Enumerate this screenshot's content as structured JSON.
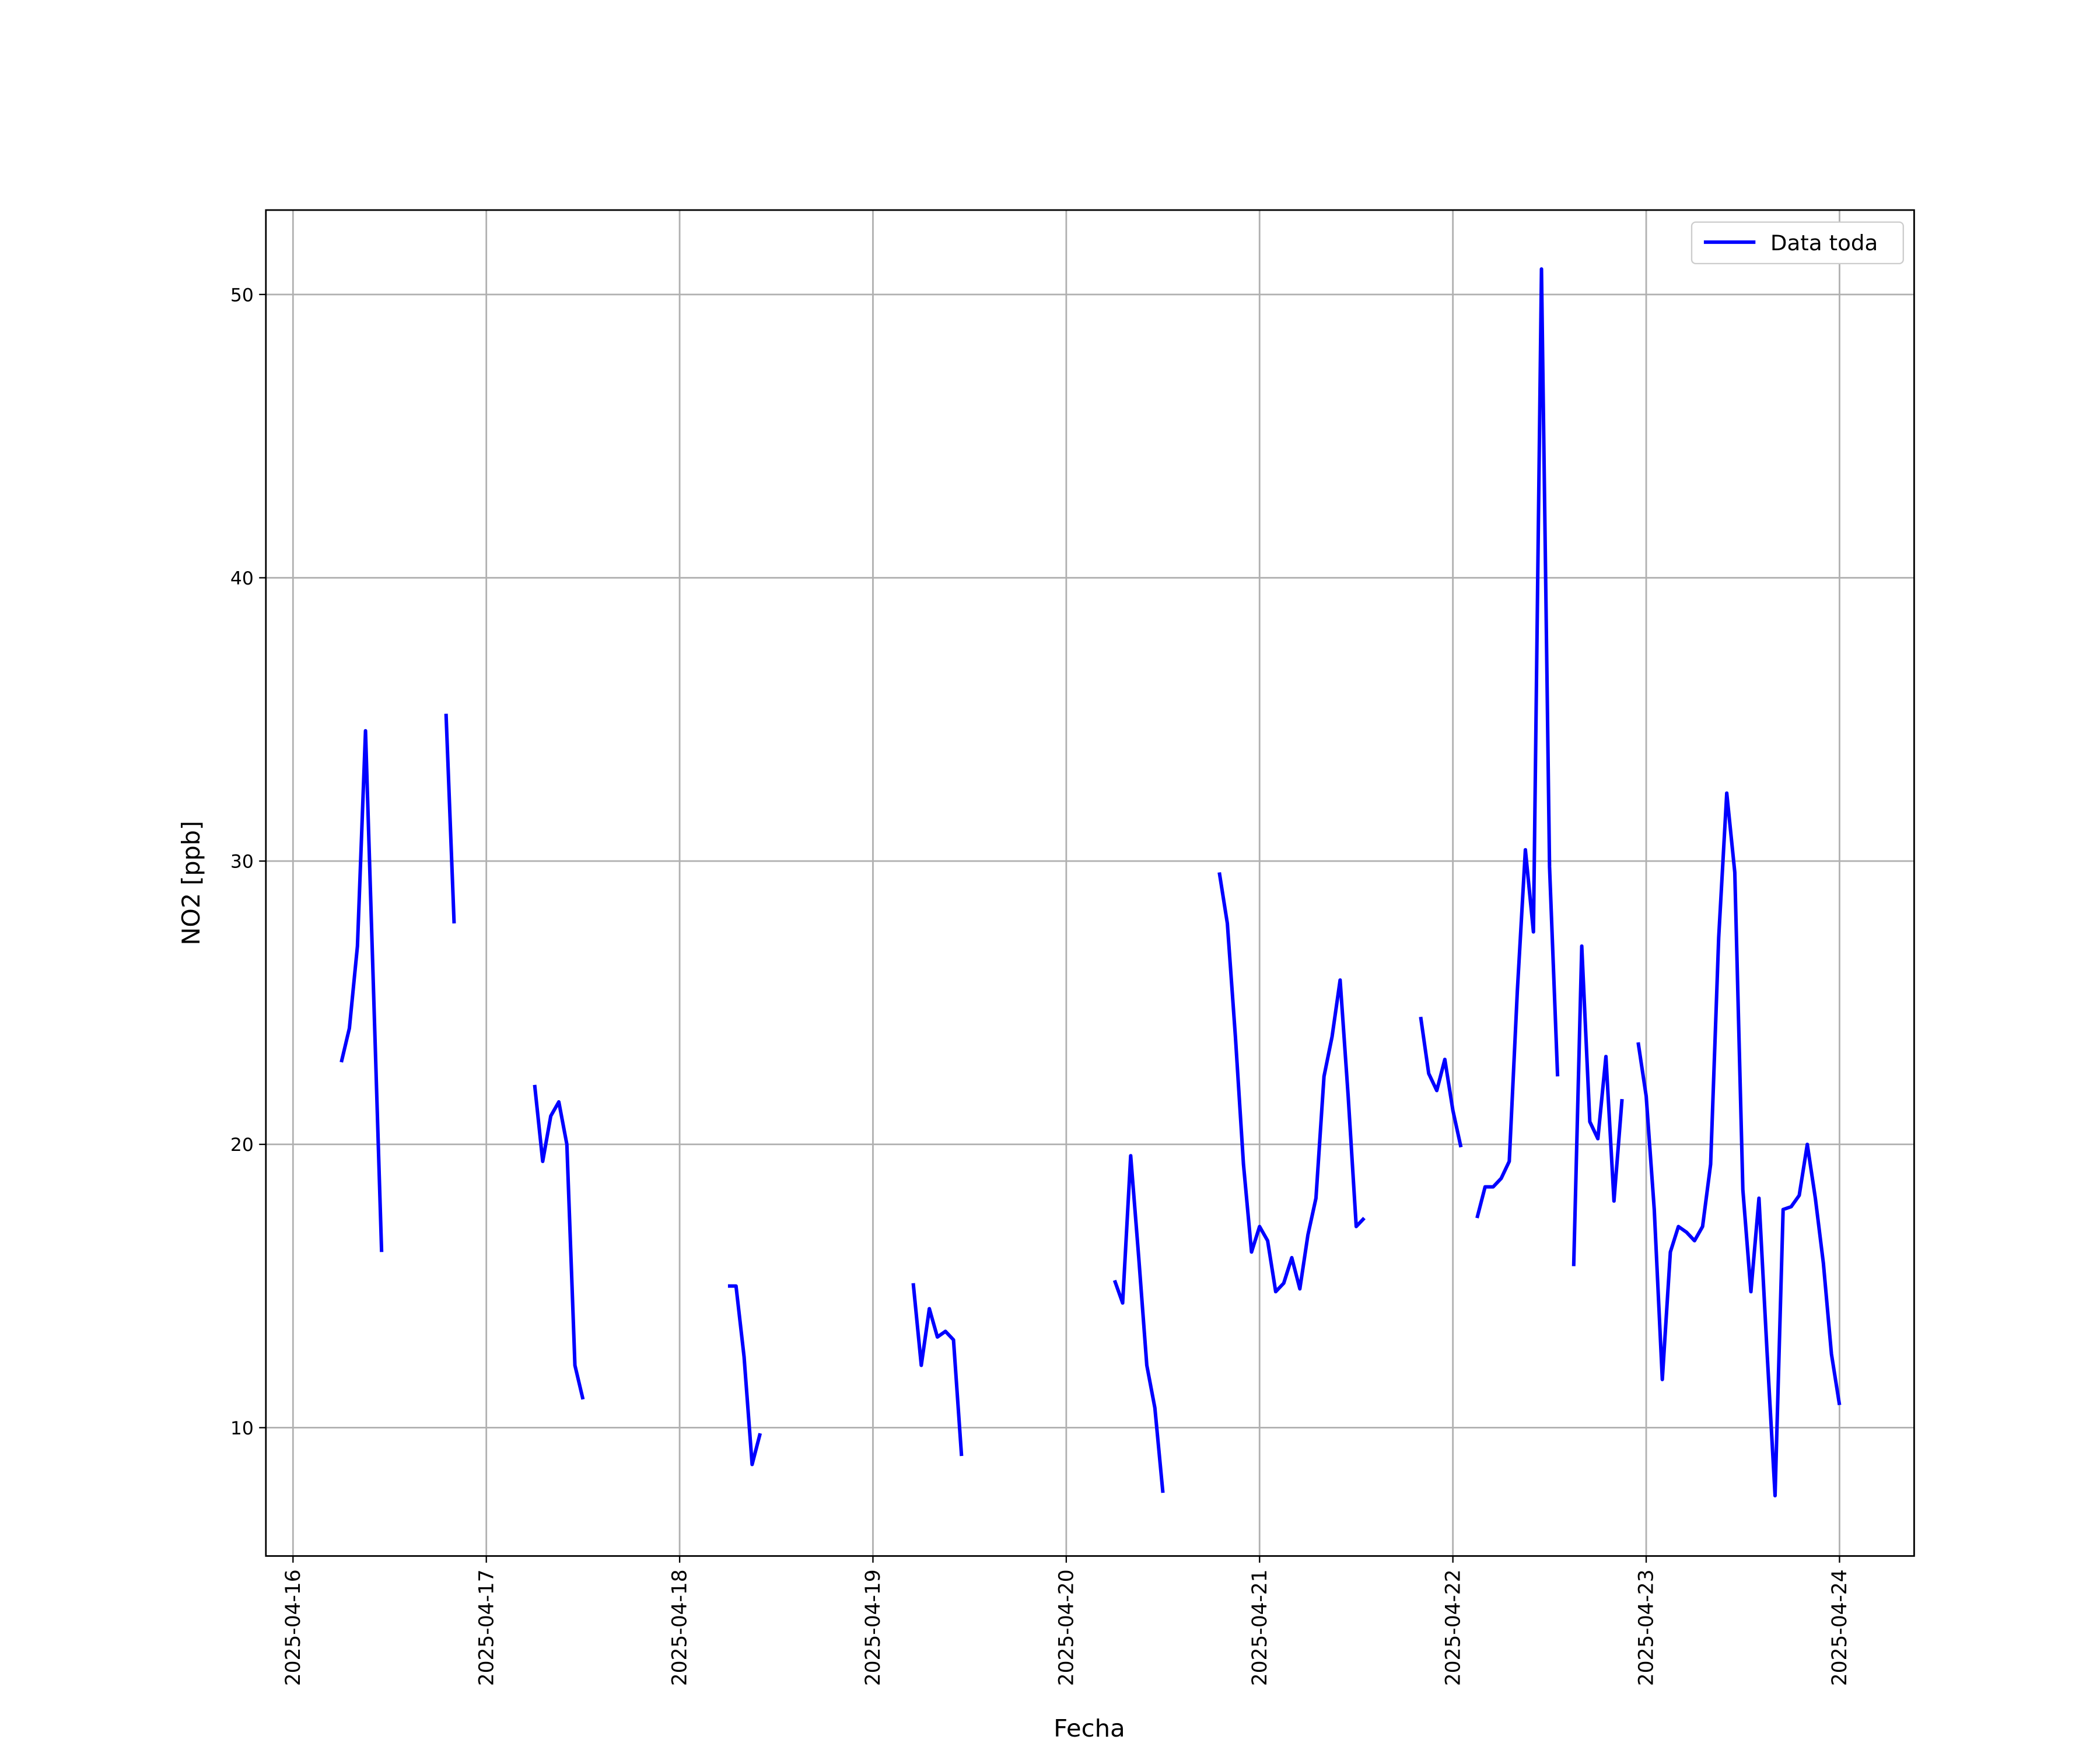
{
  "chart_data": {
    "type": "line",
    "xlabel": "Fecha",
    "ylabel": "NO2 [ppb]",
    "x": [
      "2025-04-16 06:00",
      "2025-04-16 07:00",
      "2025-04-16 08:00",
      "2025-04-16 09:00",
      "2025-04-16 10:00",
      "2025-04-16 11:00",
      "2025-04-16 12:00",
      "2025-04-16 19:00",
      "2025-04-16 20:00",
      "2025-04-16 21:00",
      "2025-04-17 06:00",
      "2025-04-17 07:00",
      "2025-04-17 08:00",
      "2025-04-17 09:00",
      "2025-04-17 10:00",
      "2025-04-17 11:00",
      "2025-04-17 12:00",
      "2025-04-17 13:00",
      "2025-04-18 06:00",
      "2025-04-18 07:00",
      "2025-04-18 08:00",
      "2025-04-18 09:00",
      "2025-04-18 10:00",
      "2025-04-18 11:00",
      "2025-04-19 05:00",
      "2025-04-19 06:00",
      "2025-04-19 07:00",
      "2025-04-19 08:00",
      "2025-04-19 09:00",
      "2025-04-19 10:00",
      "2025-04-19 11:00",
      "2025-04-19 12:00",
      "2025-04-20 06:00",
      "2025-04-20 07:00",
      "2025-04-20 08:00",
      "2025-04-20 09:00",
      "2025-04-20 10:00",
      "2025-04-20 11:00",
      "2025-04-20 12:00",
      "2025-04-20 13:00",
      "2025-04-20 19:00",
      "2025-04-20 20:00",
      "2025-04-20 21:00",
      "2025-04-20 22:00",
      "2025-04-20 23:00",
      "2025-04-21 00:00",
      "2025-04-21 01:00",
      "2025-04-21 02:00",
      "2025-04-21 03:00",
      "2025-04-21 04:00",
      "2025-04-21 05:00",
      "2025-04-21 06:00",
      "2025-04-21 07:00",
      "2025-04-21 08:00",
      "2025-04-21 09:00",
      "2025-04-21 10:00",
      "2025-04-21 11:00",
      "2025-04-21 12:00",
      "2025-04-21 13:00",
      "2025-04-21 14:00",
      "2025-04-21 20:00",
      "2025-04-21 21:00",
      "2025-04-21 22:00",
      "2025-04-21 23:00",
      "2025-04-22 00:00",
      "2025-04-22 01:00",
      "2025-04-22 02:00",
      "2025-04-22 03:00",
      "2025-04-22 04:00",
      "2025-04-22 05:00",
      "2025-04-22 06:00",
      "2025-04-22 07:00",
      "2025-04-22 08:00",
      "2025-04-22 09:00",
      "2025-04-22 10:00",
      "2025-04-22 11:00",
      "2025-04-22 12:00",
      "2025-04-22 13:00",
      "2025-04-22 14:00",
      "2025-04-22 15:00",
      "2025-04-22 16:00",
      "2025-04-22 17:00",
      "2025-04-22 18:00",
      "2025-04-22 19:00",
      "2025-04-22 20:00",
      "2025-04-22 21:00",
      "2025-04-22 22:00",
      "2025-04-22 23:00",
      "2025-04-23 00:00",
      "2025-04-23 01:00",
      "2025-04-23 02:00",
      "2025-04-23 03:00",
      "2025-04-23 04:00",
      "2025-04-23 05:00",
      "2025-04-23 06:00",
      "2025-04-23 07:00",
      "2025-04-23 08:00",
      "2025-04-23 09:00",
      "2025-04-23 10:00",
      "2025-04-23 11:00",
      "2025-04-23 12:00",
      "2025-04-23 13:00",
      "2025-04-23 14:00",
      "2025-04-23 15:00",
      "2025-04-23 16:00",
      "2025-04-23 17:00",
      "2025-04-23 18:00",
      "2025-04-23 19:00",
      "2025-04-23 20:00",
      "2025-04-23 21:00",
      "2025-04-23 22:00",
      "2025-04-23 23:00",
      "2025-04-24 00:00"
    ],
    "series": [
      {
        "name": "Data toda",
        "color": "#0000ff",
        "values": [
          22.9,
          24.1,
          27.0,
          34.6,
          25.4,
          16.2,
          null,
          35.2,
          27.8,
          null,
          22.1,
          19.4,
          21.0,
          21.5,
          20.0,
          12.2,
          11.0,
          null,
          15.0,
          15.0,
          12.5,
          8.7,
          9.8,
          null,
          15.1,
          12.2,
          14.2,
          13.2,
          13.4,
          13.1,
          9.0,
          null,
          15.2,
          14.4,
          19.6,
          16.0,
          12.2,
          10.7,
          7.7,
          null,
          29.6,
          27.8,
          23.8,
          19.3,
          16.2,
          17.1,
          16.6,
          14.8,
          15.1,
          16.0,
          14.9,
          16.8,
          18.1,
          22.4,
          23.8,
          25.8,
          21.7,
          17.1,
          17.4,
          null,
          24.5,
          22.5,
          21.9,
          23.0,
          21.2,
          19.9,
          null,
          17.4,
          18.5,
          18.5,
          18.8,
          19.4,
          25.4,
          30.4,
          27.5,
          50.9,
          29.8,
          22.4,
          null,
          15.7,
          27.0,
          20.8,
          20.2,
          23.1,
          18.0,
          21.6,
          null,
          23.6,
          21.7,
          17.7,
          11.7,
          16.2,
          17.1,
          16.9,
          16.6,
          17.1,
          19.3,
          27.3,
          32.4,
          29.6,
          18.4,
          14.8,
          18.1,
          12.7,
          7.6,
          17.7,
          17.8,
          18.2,
          20.0,
          18.1,
          15.8,
          12.6,
          10.8
        ]
      }
    ],
    "xlim": [
      "2025-04-15 20:38",
      "2025-04-24 09:16"
    ],
    "xticks": [
      "2025-04-16",
      "2025-04-17",
      "2025-04-18",
      "2025-04-19",
      "2025-04-20",
      "2025-04-21",
      "2025-04-22",
      "2025-04-23",
      "2025-04-24"
    ],
    "ylim": [
      5.47,
      52.98
    ],
    "yticks": [
      10,
      20,
      30,
      40,
      50
    ],
    "grid": true,
    "legend": "upper right"
  }
}
